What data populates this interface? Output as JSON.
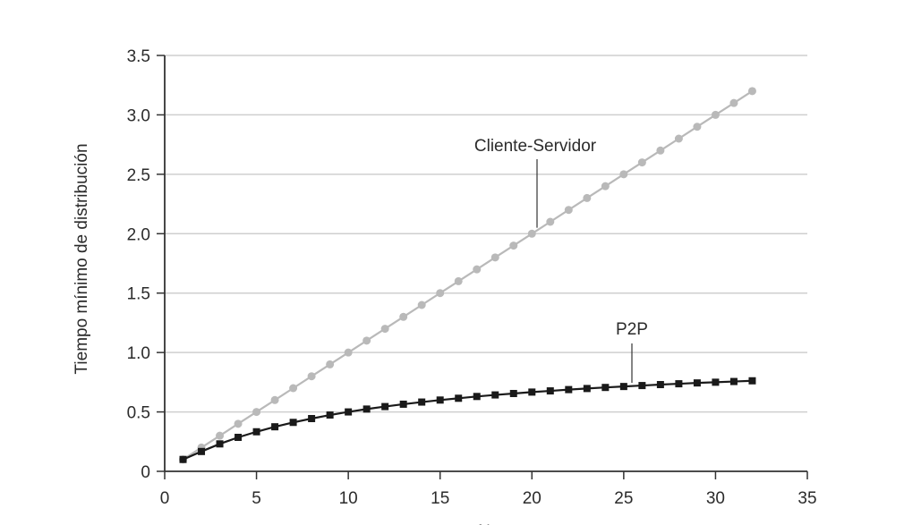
{
  "chart_data": {
    "type": "line",
    "title": "",
    "xlabel": "N",
    "ylabel": "Tiempo mínimo de distribución",
    "xlim": [
      0,
      35
    ],
    "ylim": [
      0,
      3.5
    ],
    "x_ticks": [
      "0",
      "5",
      "10",
      "15",
      "20",
      "25",
      "30",
      "35"
    ],
    "y_ticks": [
      "0",
      "0.5",
      "1.0",
      "1.5",
      "2.0",
      "2.5",
      "3.0",
      "3.5"
    ],
    "grid": true,
    "series": [
      {
        "name": "Cliente-Servidor",
        "color": "#b9b9b9",
        "marker": "circle",
        "x": [
          1,
          2,
          3,
          4,
          5,
          6,
          7,
          8,
          9,
          10,
          11,
          12,
          13,
          14,
          15,
          16,
          17,
          18,
          19,
          20,
          21,
          22,
          23,
          24,
          25,
          26,
          27,
          28,
          29,
          30,
          31,
          32
        ],
        "values": [
          0.1,
          0.2,
          0.3,
          0.4,
          0.5,
          0.6,
          0.7,
          0.8,
          0.9,
          1.0,
          1.1,
          1.2,
          1.3,
          1.4,
          1.5,
          1.6,
          1.7,
          1.8,
          1.9,
          2.0,
          2.1,
          2.2,
          2.3,
          2.4,
          2.5,
          2.6,
          2.7,
          2.8,
          2.9,
          3.0,
          3.1,
          3.2
        ]
      },
      {
        "name": "P2P",
        "color": "#1a1a1a",
        "marker": "square",
        "x": [
          1,
          2,
          3,
          4,
          5,
          6,
          7,
          8,
          9,
          10,
          11,
          12,
          13,
          14,
          15,
          16,
          17,
          18,
          19,
          20,
          21,
          22,
          23,
          24,
          25,
          26,
          27,
          28,
          29,
          30,
          31,
          32
        ],
        "values": [
          0.1,
          0.167,
          0.231,
          0.286,
          0.333,
          0.375,
          0.412,
          0.444,
          0.474,
          0.5,
          0.524,
          0.545,
          0.565,
          0.583,
          0.6,
          0.615,
          0.63,
          0.643,
          0.655,
          0.667,
          0.677,
          0.688,
          0.697,
          0.706,
          0.714,
          0.722,
          0.73,
          0.737,
          0.744,
          0.75,
          0.756,
          0.762
        ]
      }
    ]
  }
}
